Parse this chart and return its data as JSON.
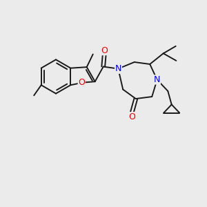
{
  "bg_color": "#ebebeb",
  "bond_color": "#1a1a1a",
  "bond_width": 1.4,
  "N_color": "#0000ee",
  "O_color": "#ee0000",
  "C_color": "#1a1a1a",
  "font_size": 8.5,
  "xlim": [
    0,
    10
  ],
  "ylim": [
    0,
    10
  ]
}
